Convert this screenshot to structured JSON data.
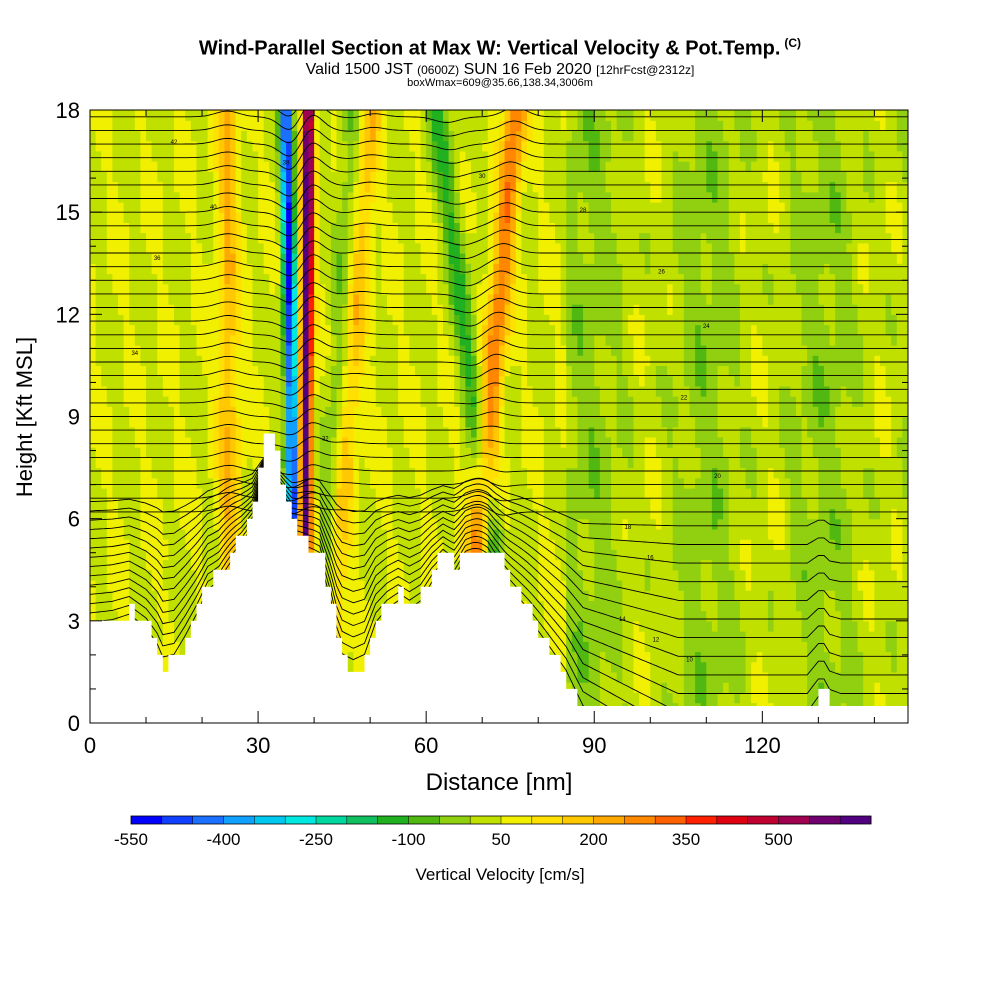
{
  "header": {
    "title": "Wind-Parallel Section at Max W: Vertical Velocity & Pot.Temp.",
    "copyright": "(C)",
    "subtitle_a": "Valid 1500 JST",
    "subtitle_b": "(0600Z)",
    "subtitle_c": "SUN 16 Feb 2020",
    "subtitle_d": "[12hrFcst@2312z]",
    "subtitle3": "boxWmax=609@35.66,138.34,3006m"
  },
  "colors": {
    "terrain": "#ffffff",
    "contour": "#000000",
    "background_field": "#f0f000"
  },
  "chart_data": {
    "type": "heatmap",
    "xlabel": "Distance [nm]",
    "ylabel": "Height [Kft MSL]",
    "xlim": [
      0,
      146
    ],
    "ylim": [
      0,
      18
    ],
    "xticks": [
      0,
      30,
      60,
      90,
      120
    ],
    "yticks": [
      0,
      3,
      6,
      9,
      12,
      15,
      18
    ],
    "colorbar": {
      "label": "Vertical Velocity [cm/s]",
      "tick_labels": [
        "-550",
        "-400",
        "-250",
        "-100",
        "50",
        "200",
        "350",
        "500"
      ],
      "tick_values": [
        -550,
        -400,
        -250,
        -100,
        50,
        200,
        350,
        500
      ],
      "bins": [
        -550,
        -500,
        -450,
        -400,
        -350,
        -300,
        -250,
        -200,
        -150,
        -100,
        -50,
        0,
        50,
        100,
        150,
        200,
        250,
        300,
        350,
        400,
        450,
        500,
        550,
        600
      ],
      "colors": [
        "#0000ff",
        "#1040ff",
        "#1c70ff",
        "#10a0ff",
        "#00c8f0",
        "#00e8e0",
        "#00d8a0",
        "#10c060",
        "#20b020",
        "#50b810",
        "#90d010",
        "#c0e000",
        "#f0f000",
        "#ffe000",
        "#ffc800",
        "#ffa800",
        "#ff8800",
        "#ff6000",
        "#ff2000",
        "#e00010",
        "#c00030",
        "#a00050",
        "#700070",
        "#500080"
      ]
    },
    "terrain_kft": [
      [
        0,
        3.0
      ],
      [
        4,
        3.1
      ],
      [
        7,
        3.3
      ],
      [
        10,
        2.8
      ],
      [
        12,
        2.2
      ],
      [
        13,
        1.7
      ],
      [
        15,
        1.8
      ],
      [
        17,
        2.5
      ],
      [
        19,
        3.3
      ],
      [
        21,
        4.2
      ],
      [
        23,
        4.4
      ],
      [
        25,
        5.0
      ],
      [
        27,
        5.6
      ],
      [
        29,
        6.4
      ],
      [
        31,
        8.5
      ],
      [
        32,
        8.4
      ],
      [
        33,
        7.8
      ],
      [
        34,
        7.0
      ],
      [
        35,
        6.4
      ],
      [
        36,
        5.8
      ],
      [
        37,
        5.6
      ],
      [
        38,
        5.4
      ],
      [
        39,
        5.2
      ],
      [
        41,
        5.0
      ],
      [
        42,
        4.2
      ],
      [
        43,
        3.4
      ],
      [
        44,
        2.4
      ],
      [
        45,
        1.8
      ],
      [
        47,
        1.6
      ],
      [
        49,
        1.8
      ],
      [
        50,
        2.4
      ],
      [
        51,
        3.0
      ],
      [
        53,
        3.5
      ],
      [
        55,
        3.8
      ],
      [
        57,
        3.5
      ],
      [
        59,
        3.8
      ],
      [
        61,
        4.5
      ],
      [
        63,
        5.0
      ],
      [
        65,
        4.6
      ],
      [
        67,
        5.2
      ],
      [
        71,
        5.2
      ],
      [
        73,
        4.8
      ],
      [
        75,
        4.2
      ],
      [
        77,
        3.6
      ],
      [
        79,
        3.0
      ],
      [
        81,
        2.4
      ],
      [
        83,
        1.8
      ],
      [
        85,
        1.2
      ],
      [
        87,
        0.6
      ],
      [
        88,
        0.3
      ],
      [
        98,
        0.3
      ],
      [
        108,
        0.3
      ],
      [
        118,
        0.3
      ],
      [
        128,
        0.3
      ],
      [
        130,
        1.0
      ],
      [
        131,
        1.0
      ],
      [
        132,
        0.5
      ],
      [
        134,
        0.3
      ],
      [
        146,
        0.3
      ]
    ],
    "updraft_bands": [
      {
        "x_at_top": 39.0,
        "x_at_bottom": 38.0,
        "w_max": 609
      },
      {
        "x_at_top": 76.0,
        "x_at_bottom": 66.5,
        "w_max": 250
      },
      {
        "x_at_top": 50.0,
        "x_at_bottom": 42.0,
        "w_max": 150
      },
      {
        "x_at_top": 24.5,
        "x_at_bottom": 25.0,
        "w_max": 150
      }
    ],
    "downdraft_bands": [
      {
        "x_at_top": 35.0,
        "x_at_bottom": 37.0,
        "w_min": -550
      },
      {
        "x_at_top": 62.0,
        "x_at_bottom": 76.0,
        "w_min": -150
      },
      {
        "x_at_top": 47.0,
        "x_at_bottom": 41.0,
        "w_min": -100
      }
    ],
    "theta_contour_labels": [
      "42",
      "40",
      "38",
      "36",
      "34",
      "32",
      "30",
      "28",
      "26",
      "24",
      "22",
      "20",
      "18",
      "16",
      "14",
      "12",
      "10"
    ]
  }
}
